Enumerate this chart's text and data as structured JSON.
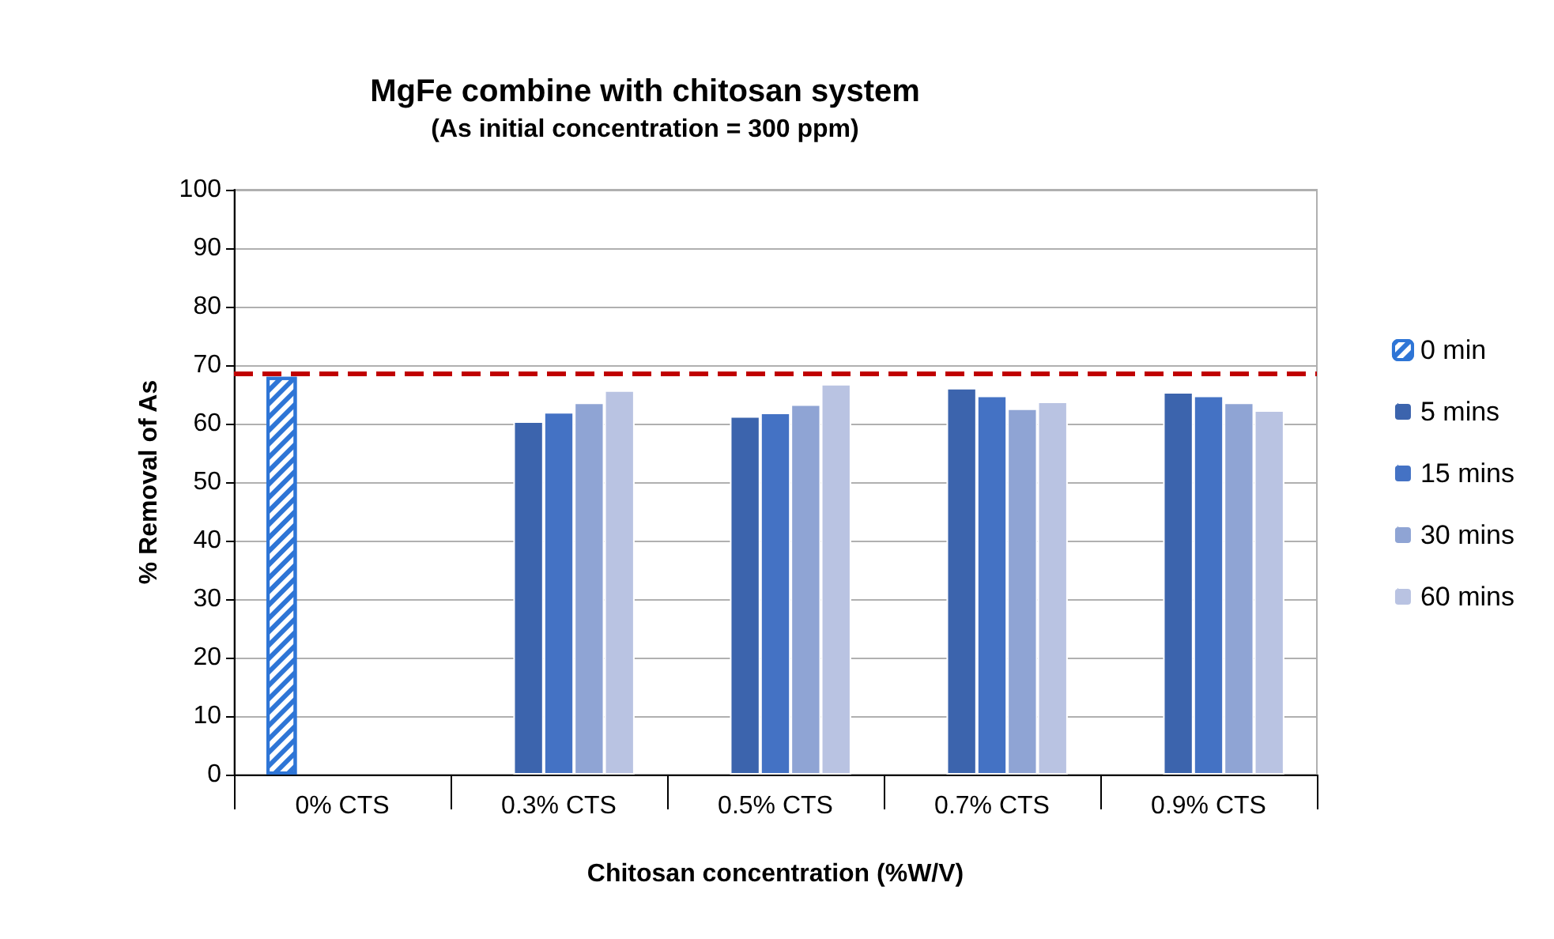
{
  "chart_data": {
    "type": "bar",
    "title": "MgFe combine with chitosan system",
    "subtitle": "(As initial concentration = 300 ppm)",
    "xlabel": "Chitosan concentration (%W/V)",
    "ylabel": "% Removal of As",
    "categories": [
      "0% CTS",
      "0.3% CTS",
      "0.5% CTS",
      "0.7% CTS",
      "0.9% CTS"
    ],
    "series": [
      {
        "name": "0 min",
        "color": "#2e75d6",
        "values": [
          68,
          null,
          null,
          null,
          null
        ]
      },
      {
        "name": "5 mins",
        "color": "#3c64ad",
        "values": [
          null,
          60.4,
          61.3,
          66.1,
          65.4
        ]
      },
      {
        "name": "15 mins",
        "color": "#4472c4",
        "values": [
          null,
          62.0,
          61.9,
          64.8,
          64.8
        ]
      },
      {
        "name": "30 mins",
        "color": "#8fa4d4",
        "values": [
          null,
          63.6,
          63.3,
          62.6,
          63.6
        ]
      },
      {
        "name": "60 mins",
        "color": "#b9c3e2",
        "values": [
          null,
          65.7,
          66.8,
          63.8,
          62.3
        ]
      }
    ],
    "ylim": [
      0,
      100
    ],
    "yticks": [
      0,
      10,
      20,
      30,
      40,
      50,
      60,
      70,
      80,
      90,
      100
    ],
    "ref_lines": [
      {
        "axis": "y",
        "value": 68.6,
        "color": "#c00000",
        "line_style": "dashed"
      }
    ],
    "grid": "y",
    "legend": "right"
  }
}
